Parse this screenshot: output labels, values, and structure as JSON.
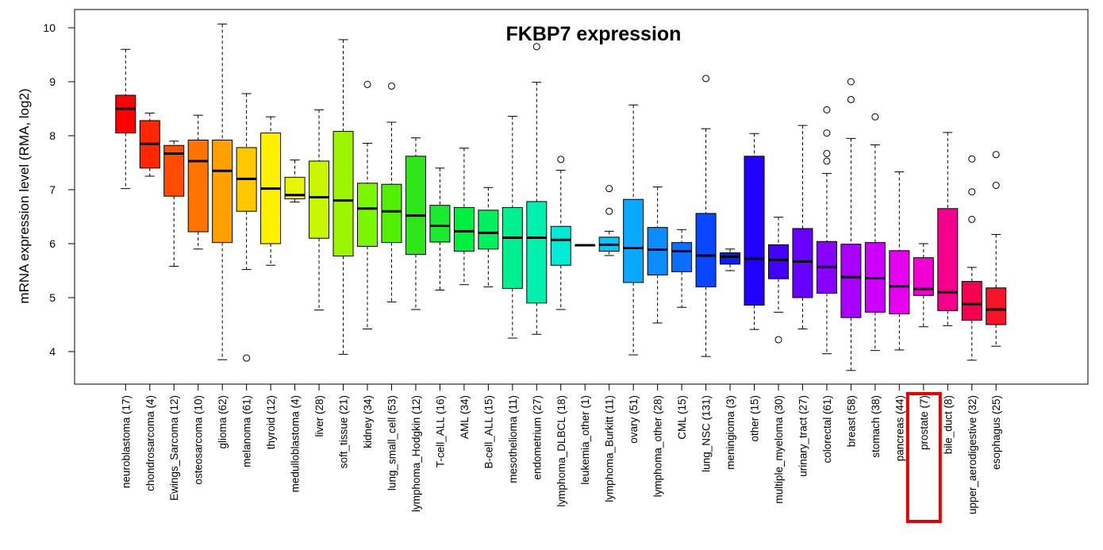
{
  "chart_data": {
    "type": "box",
    "title": "FKBP7 expression",
    "ylabel": "mRNA expression level (RMA, log2)",
    "xlabel": "",
    "ylim": [
      3.45,
      10.35
    ],
    "yticks": [
      4,
      5,
      6,
      7,
      8,
      9,
      10
    ],
    "grid": false,
    "highlight": "prostate (7)",
    "highlight_color": "#e60000",
    "series": [
      {
        "name": "neuroblastoma (17)",
        "color": "#ff0000",
        "min": 7.02,
        "q1": 8.05,
        "median": 8.5,
        "q3": 8.75,
        "max": 9.6,
        "outliers": []
      },
      {
        "name": "chondrosarcoma (4)",
        "color": "#ff2600",
        "min": 7.25,
        "q1": 7.4,
        "median": 7.85,
        "q3": 8.28,
        "max": 8.42,
        "outliers": []
      },
      {
        "name": "Ewings_Sarcoma (12)",
        "color": "#ff4d00",
        "min": 5.58,
        "q1": 6.88,
        "median": 7.67,
        "q3": 7.82,
        "max": 7.9,
        "outliers": []
      },
      {
        "name": "osteosarcoma (10)",
        "color": "#ff7400",
        "min": 5.9,
        "q1": 6.22,
        "median": 7.53,
        "q3": 7.92,
        "max": 8.38,
        "outliers": []
      },
      {
        "name": "glioma (62)",
        "color": "#ffa000",
        "min": 3.85,
        "q1": 6.02,
        "median": 7.35,
        "q3": 7.92,
        "max": 10.07,
        "outliers": []
      },
      {
        "name": "melanoma (61)",
        "color": "#ffc800",
        "min": 5.52,
        "q1": 6.6,
        "median": 7.2,
        "q3": 7.78,
        "max": 8.78,
        "outliers": [
          3.88
        ]
      },
      {
        "name": "thyroid (12)",
        "color": "#fff000",
        "min": 5.6,
        "q1": 6.0,
        "median": 7.02,
        "q3": 8.05,
        "max": 8.35,
        "outliers": []
      },
      {
        "name": "medulloblastoma (4)",
        "color": "#e6f500",
        "min": 6.77,
        "q1": 6.83,
        "median": 6.9,
        "q3": 7.23,
        "max": 7.55,
        "outliers": []
      },
      {
        "name": "liver (28)",
        "color": "#c8f500",
        "min": 4.77,
        "q1": 6.1,
        "median": 6.86,
        "q3": 7.53,
        "max": 8.48,
        "outliers": []
      },
      {
        "name": "soft_tissue (21)",
        "color": "#9ef500",
        "min": 3.95,
        "q1": 5.77,
        "median": 6.8,
        "q3": 8.08,
        "max": 9.78,
        "outliers": []
      },
      {
        "name": "kidney (34)",
        "color": "#7cf500",
        "min": 4.42,
        "q1": 5.95,
        "median": 6.65,
        "q3": 7.12,
        "max": 7.86,
        "outliers": [
          8.95
        ]
      },
      {
        "name": "lung_small_cell (53)",
        "color": "#52f000",
        "min": 4.92,
        "q1": 6.02,
        "median": 6.6,
        "q3": 7.1,
        "max": 8.25,
        "outliers": [
          8.92
        ]
      },
      {
        "name": "lymphoma_Hodgkin (12)",
        "color": "#2ee61a",
        "min": 4.78,
        "q1": 5.8,
        "median": 6.52,
        "q3": 7.62,
        "max": 7.96,
        "outliers": []
      },
      {
        "name": "T-cell_ALL (16)",
        "color": "#1aeb2e",
        "min": 5.14,
        "q1": 6.03,
        "median": 6.33,
        "q3": 6.71,
        "max": 7.4,
        "outliers": []
      },
      {
        "name": "AML (34)",
        "color": "#00f040",
        "min": 5.24,
        "q1": 5.86,
        "median": 6.23,
        "q3": 6.67,
        "max": 7.77,
        "outliers": []
      },
      {
        "name": "B-cell_ALL (15)",
        "color": "#00f060",
        "min": 5.2,
        "q1": 5.9,
        "median": 6.2,
        "q3": 6.62,
        "max": 7.04,
        "outliers": []
      },
      {
        "name": "mesothelioma (11)",
        "color": "#00f090",
        "min": 4.25,
        "q1": 5.17,
        "median": 6.11,
        "q3": 6.67,
        "max": 8.36,
        "outliers": []
      },
      {
        "name": "endometrium (27)",
        "color": "#00f0b0",
        "min": 4.32,
        "q1": 4.9,
        "median": 6.11,
        "q3": 6.78,
        "max": 8.99,
        "outliers": [
          9.65
        ]
      },
      {
        "name": "lymphoma_DLBCL (18)",
        "color": "#00ebd6",
        "min": 4.78,
        "q1": 5.6,
        "median": 6.07,
        "q3": 6.32,
        "max": 7.36,
        "outliers": [
          7.56
        ]
      },
      {
        "name": "leukemia_other (1)",
        "color": "#00e1f0",
        "min": 5.97,
        "q1": 5.97,
        "median": 5.97,
        "q3": 5.97,
        "max": 5.97,
        "outliers": []
      },
      {
        "name": "lymphoma_Burkitt (11)",
        "color": "#00c8ff",
        "min": 5.78,
        "q1": 5.86,
        "median": 5.98,
        "q3": 6.12,
        "max": 6.23,
        "outliers": [
          6.6,
          7.02
        ]
      },
      {
        "name": "ovary (51)",
        "color": "#0aa8ff",
        "min": 3.94,
        "q1": 5.28,
        "median": 5.92,
        "q3": 6.82,
        "max": 8.57,
        "outliers": []
      },
      {
        "name": "lymphoma_other (28)",
        "color": "#0a8cff",
        "min": 4.53,
        "q1": 5.42,
        "median": 5.89,
        "q3": 6.3,
        "max": 7.05,
        "outliers": []
      },
      {
        "name": "CML (15)",
        "color": "#0a6eff",
        "min": 4.82,
        "q1": 5.48,
        "median": 5.86,
        "q3": 6.02,
        "max": 6.26,
        "outliers": []
      },
      {
        "name": "lung_NSC (131)",
        "color": "#0a46ff",
        "min": 3.91,
        "q1": 5.2,
        "median": 5.78,
        "q3": 6.56,
        "max": 8.13,
        "outliers": [
          9.06
        ]
      },
      {
        "name": "meningioma (3)",
        "color": "#0a1eff",
        "min": 5.5,
        "q1": 5.62,
        "median": 5.76,
        "q3": 5.83,
        "max": 5.9,
        "outliers": []
      },
      {
        "name": "other (15)",
        "color": "#2200ff",
        "min": 4.41,
        "q1": 4.86,
        "median": 5.72,
        "q3": 7.62,
        "max": 8.04,
        "outliers": []
      },
      {
        "name": "multiple_myeloma (30)",
        "color": "#4400ff",
        "min": 4.73,
        "q1": 5.35,
        "median": 5.7,
        "q3": 5.98,
        "max": 6.49,
        "outliers": [
          4.22
        ]
      },
      {
        "name": "urinary_tract (27)",
        "color": "#6600ff",
        "min": 4.42,
        "q1": 5.0,
        "median": 5.67,
        "q3": 6.28,
        "max": 8.19,
        "outliers": []
      },
      {
        "name": "colorectal (61)",
        "color": "#8800ff",
        "min": 3.96,
        "q1": 5.08,
        "median": 5.57,
        "q3": 6.04,
        "max": 7.3,
        "outliers": [
          7.53,
          7.67,
          8.05,
          8.48
        ]
      },
      {
        "name": "breast (58)",
        "color": "#aa00ff",
        "min": 3.65,
        "q1": 4.63,
        "median": 5.38,
        "q3": 5.99,
        "max": 7.95,
        "outliers": [
          8.67,
          9.0
        ]
      },
      {
        "name": "stomach (38)",
        "color": "#cc00ff",
        "min": 4.02,
        "q1": 4.73,
        "median": 5.36,
        "q3": 6.02,
        "max": 7.83,
        "outliers": [
          8.35
        ]
      },
      {
        "name": "pancreas (44)",
        "color": "#e600f0",
        "min": 4.03,
        "q1": 4.7,
        "median": 5.21,
        "q3": 5.87,
        "max": 7.33,
        "outliers": []
      },
      {
        "name": "prostate (7)",
        "color": "#f000d2",
        "min": 4.46,
        "q1": 5.04,
        "median": 5.16,
        "q3": 5.74,
        "max": 6.0,
        "outliers": []
      },
      {
        "name": "bile_duct (8)",
        "color": "#f5008c",
        "min": 4.48,
        "q1": 4.76,
        "median": 5.1,
        "q3": 6.65,
        "max": 8.06,
        "outliers": []
      },
      {
        "name": "upper_aerodigestive (32)",
        "color": "#f50050",
        "min": 3.84,
        "q1": 4.58,
        "median": 4.88,
        "q3": 5.3,
        "max": 5.56,
        "outliers": [
          6.45,
          6.96,
          7.57
        ]
      },
      {
        "name": "esophagus (25)",
        "color": "#f51428",
        "min": 4.1,
        "q1": 4.5,
        "median": 4.78,
        "q3": 5.18,
        "max": 6.17,
        "outliers": [
          7.08,
          7.65
        ]
      }
    ]
  }
}
